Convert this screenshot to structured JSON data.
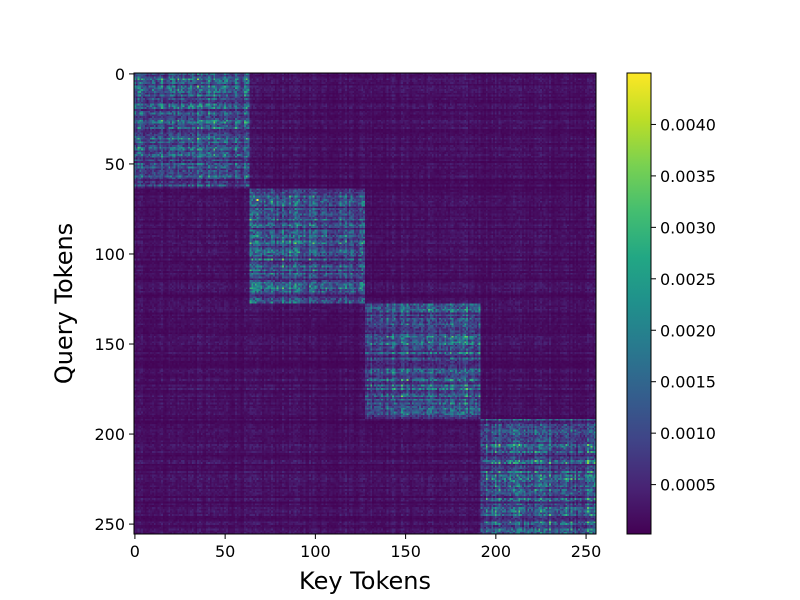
{
  "chart_data": {
    "type": "heatmap",
    "title": "",
    "xlabel": "Key Tokens",
    "ylabel": "Query Tokens",
    "n_query": 256,
    "n_key": 256,
    "xlim": [
      0,
      256
    ],
    "ylim": [
      256,
      0
    ],
    "x_ticks": [
      0,
      50,
      100,
      150,
      200,
      250
    ],
    "y_ticks": [
      0,
      50,
      100,
      150,
      200,
      250
    ],
    "colormap": "viridis",
    "colorbar": {
      "vmin": 2e-05,
      "vmax": 0.0045,
      "ticks": [
        0.0005,
        0.001,
        0.0015,
        0.002,
        0.0025,
        0.003,
        0.0035,
        0.004
      ],
      "tick_labels": [
        "0.0005",
        "0.0010",
        "0.0015",
        "0.0020",
        "0.0025",
        "0.0030",
        "0.0035",
        "0.0040"
      ]
    },
    "blocks": [
      {
        "query_range": [
          0,
          64
        ],
        "key_range": [
          0,
          64
        ],
        "mean": 0.0011
      },
      {
        "query_range": [
          64,
          128
        ],
        "key_range": [
          64,
          128
        ],
        "mean": 0.0011
      },
      {
        "query_range": [
          128,
          192
        ],
        "key_range": [
          128,
          192
        ],
        "mean": 0.0011
      },
      {
        "query_range": [
          192,
          256
        ],
        "key_range": [
          192,
          256
        ],
        "mean": 0.0011
      }
    ],
    "off_block_mean": 0.0002,
    "peak": {
      "query": 70,
      "key": 68,
      "value": 0.0045
    },
    "grid": false
  }
}
